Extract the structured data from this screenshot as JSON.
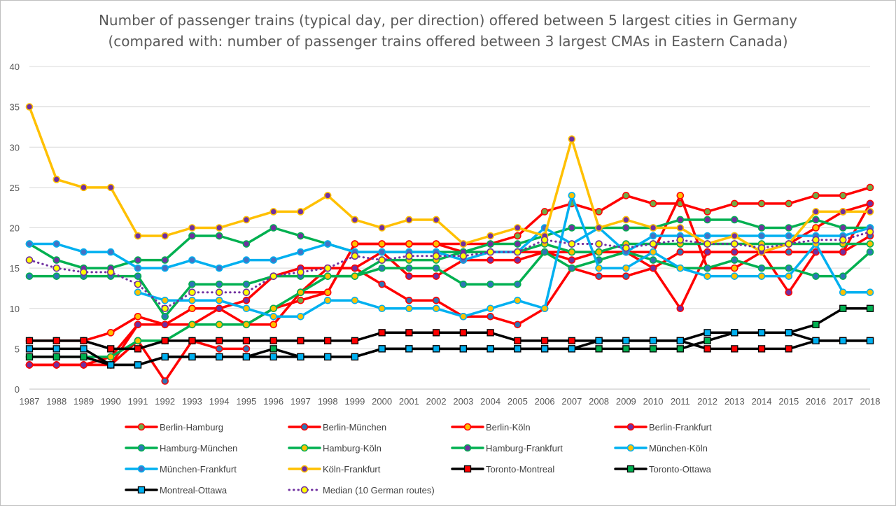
{
  "chart_data": {
    "type": "line",
    "title_lines": [
      "Number of passenger trains (typical day, per direction) offered between 5 largest cities in Germany",
      "(compared with: number of passenger trains offered between 3 largest CMAs in Eastern Canada)"
    ],
    "x": [
      1987,
      1988,
      1989,
      1990,
      1991,
      1992,
      1993,
      1994,
      1995,
      1996,
      1997,
      1998,
      1999,
      2000,
      2001,
      2002,
      2003,
      2004,
      2005,
      2006,
      2007,
      2008,
      2009,
      2010,
      2011,
      2012,
      2013,
      2014,
      2015,
      2016,
      2017,
      2018
    ],
    "ylim": [
      0,
      40
    ],
    "yticks": [
      0,
      5,
      10,
      15,
      20,
      25,
      30,
      35,
      40
    ],
    "grid": "horizontal",
    "legend_position": "bottom",
    "series": [
      {
        "name": "Berlin-Hamburg",
        "color": "#ff0000",
        "marker": "circle",
        "marker_fill": "#70ad47",
        "line_width": 3.5,
        "values": [
          3,
          3,
          3,
          4,
          8,
          8,
          8,
          8,
          8,
          10,
          11,
          12,
          18,
          18,
          18,
          18,
          18,
          18,
          19,
          22,
          23,
          22,
          24,
          23,
          23,
          22,
          23,
          23,
          23,
          24,
          24,
          25
        ]
      },
      {
        "name": "Berlin-München",
        "color": "#ff0000",
        "marker": "circle",
        "marker_fill": "#2e75b6",
        "line_width": 3.5,
        "values": [
          3,
          3,
          3,
          3,
          6,
          1,
          6,
          5,
          5,
          null,
          12,
          15,
          15,
          13,
          11,
          11,
          9,
          9,
          8,
          10,
          15,
          14,
          14,
          15,
          17,
          17,
          17,
          17,
          17,
          17,
          17,
          19
        ]
      },
      {
        "name": "Berlin-Köln",
        "color": "#ff0000",
        "marker": "circle",
        "marker_fill": "#ffc000",
        "line_width": 3.5,
        "values": [
          6,
          6,
          6,
          7,
          9,
          8,
          10,
          10,
          8,
          8,
          12,
          12,
          18,
          18,
          18,
          18,
          17,
          17,
          17,
          17,
          17,
          17,
          17,
          17,
          24,
          15,
          15,
          17,
          18,
          20,
          22,
          23
        ]
      },
      {
        "name": "Berlin-Frankfurt",
        "color": "#ff0000",
        "marker": "circle",
        "marker_fill": "#7030a0",
        "line_width": 3.5,
        "values": [
          3,
          3,
          3,
          3,
          8,
          8,
          8,
          10,
          11,
          14,
          15,
          15,
          15,
          17,
          14,
          14,
          16,
          16,
          16,
          17,
          16,
          17,
          17,
          15,
          10,
          17,
          17,
          17,
          12,
          17,
          17,
          23
        ]
      },
      {
        "name": "Hamburg-München",
        "color": "#00b050",
        "marker": "circle",
        "marker_fill": "#2e75b6",
        "line_width": 3.5,
        "values": [
          14,
          14,
          14,
          14,
          14,
          9,
          13,
          13,
          13,
          14,
          14,
          14,
          14,
          15,
          15,
          15,
          13,
          13,
          13,
          17,
          15,
          16,
          17,
          16,
          15,
          15,
          16,
          15,
          15,
          14,
          14,
          17
        ]
      },
      {
        "name": "Hamburg-Köln",
        "color": "#00b050",
        "marker": "circle",
        "marker_fill": "#ffc000",
        "line_width": 3.5,
        "values": [
          4,
          4,
          4,
          4,
          6,
          6,
          8,
          8,
          8,
          10,
          12,
          14,
          14,
          16,
          16,
          16,
          17,
          17,
          17,
          18,
          17,
          17,
          18,
          18,
          18,
          18,
          18,
          18,
          18,
          18,
          18,
          18
        ]
      },
      {
        "name": "Hamburg-Frankfurt",
        "color": "#00b050",
        "marker": "circle",
        "marker_fill": "#7030a0",
        "line_width": 3.5,
        "values": [
          18,
          16,
          15,
          15,
          16,
          16,
          19,
          19,
          18,
          20,
          19,
          18,
          17,
          17,
          17,
          17,
          17,
          18,
          18,
          19,
          20,
          20,
          20,
          20,
          21,
          21,
          21,
          20,
          20,
          21,
          20,
          20
        ]
      },
      {
        "name": "München-Köln",
        "color": "#00b0f0",
        "marker": "circle",
        "marker_fill": "#ffc000",
        "line_width": 3.5,
        "values": [
          null,
          null,
          null,
          null,
          12,
          11,
          11,
          11,
          10,
          9,
          9,
          11,
          11,
          10,
          10,
          10,
          9,
          10,
          11,
          10,
          24,
          15,
          15,
          17,
          15,
          14,
          14,
          14,
          14,
          18,
          12,
          12
        ]
      },
      {
        "name": "München-Frankfurt",
        "color": "#00b0f0",
        "marker": "circle",
        "marker_fill": "#4472c4",
        "line_width": 3.5,
        "values": [
          18,
          18,
          17,
          17,
          15,
          15,
          16,
          15,
          16,
          16,
          17,
          18,
          17,
          17,
          17,
          17,
          16,
          17,
          17,
          20,
          18,
          20,
          17,
          19,
          19,
          19,
          19,
          19,
          19,
          19,
          19,
          20
        ]
      },
      {
        "name": "Köln-Frankfurt",
        "color": "#ffc000",
        "marker": "circle",
        "marker_fill": "#7030a0",
        "line_width": 3.5,
        "values": [
          35,
          26,
          25,
          25,
          19,
          19,
          20,
          20,
          21,
          22,
          22,
          24,
          21,
          20,
          21,
          21,
          18,
          19,
          20,
          19,
          31,
          20,
          21,
          20,
          20,
          18,
          19,
          17,
          18,
          22,
          22,
          22
        ]
      },
      {
        "name": "Toronto-Montreal",
        "color": "#000000",
        "marker": "square",
        "marker_fill": "#ff0000",
        "line_width": 3.5,
        "values": [
          6,
          6,
          6,
          5,
          5,
          6,
          6,
          6,
          6,
          6,
          6,
          6,
          6,
          7,
          7,
          7,
          7,
          7,
          6,
          6,
          6,
          6,
          6,
          6,
          6,
          5,
          5,
          5,
          5,
          6,
          6,
          6
        ]
      },
      {
        "name": "Toronto-Ottawa",
        "color": "#000000",
        "marker": "square",
        "marker_fill": "#00b050",
        "line_width": 3.5,
        "values": [
          4,
          4,
          4,
          3,
          3,
          4,
          4,
          4,
          4,
          5,
          4,
          4,
          4,
          5,
          5,
          5,
          5,
          5,
          5,
          5,
          5,
          5,
          5,
          5,
          5,
          6,
          7,
          7,
          7,
          8,
          10,
          10
        ]
      },
      {
        "name": "Montreal-Ottawa",
        "color": "#000000",
        "marker": "square",
        "marker_fill": "#00b0f0",
        "line_width": 3.5,
        "values": [
          5,
          5,
          5,
          3,
          3,
          4,
          4,
          4,
          4,
          4,
          4,
          4,
          4,
          5,
          5,
          5,
          5,
          5,
          5,
          5,
          5,
          6,
          6,
          6,
          6,
          7,
          7,
          7,
          7,
          6,
          6,
          6
        ]
      },
      {
        "name": "Median (10 German routes)",
        "color": "#7030a0",
        "marker": "circle",
        "marker_fill": "#ffff00",
        "line_width": 3,
        "dashed": true,
        "values": [
          16,
          15,
          14.5,
          14.5,
          13,
          10,
          12,
          12,
          12,
          14,
          14.5,
          15,
          16.5,
          16,
          16.5,
          16.5,
          16.5,
          17,
          17,
          18.5,
          18,
          18,
          17.5,
          18,
          18.5,
          18,
          18,
          17.5,
          18,
          18.5,
          18.5,
          19.5
        ]
      }
    ]
  }
}
